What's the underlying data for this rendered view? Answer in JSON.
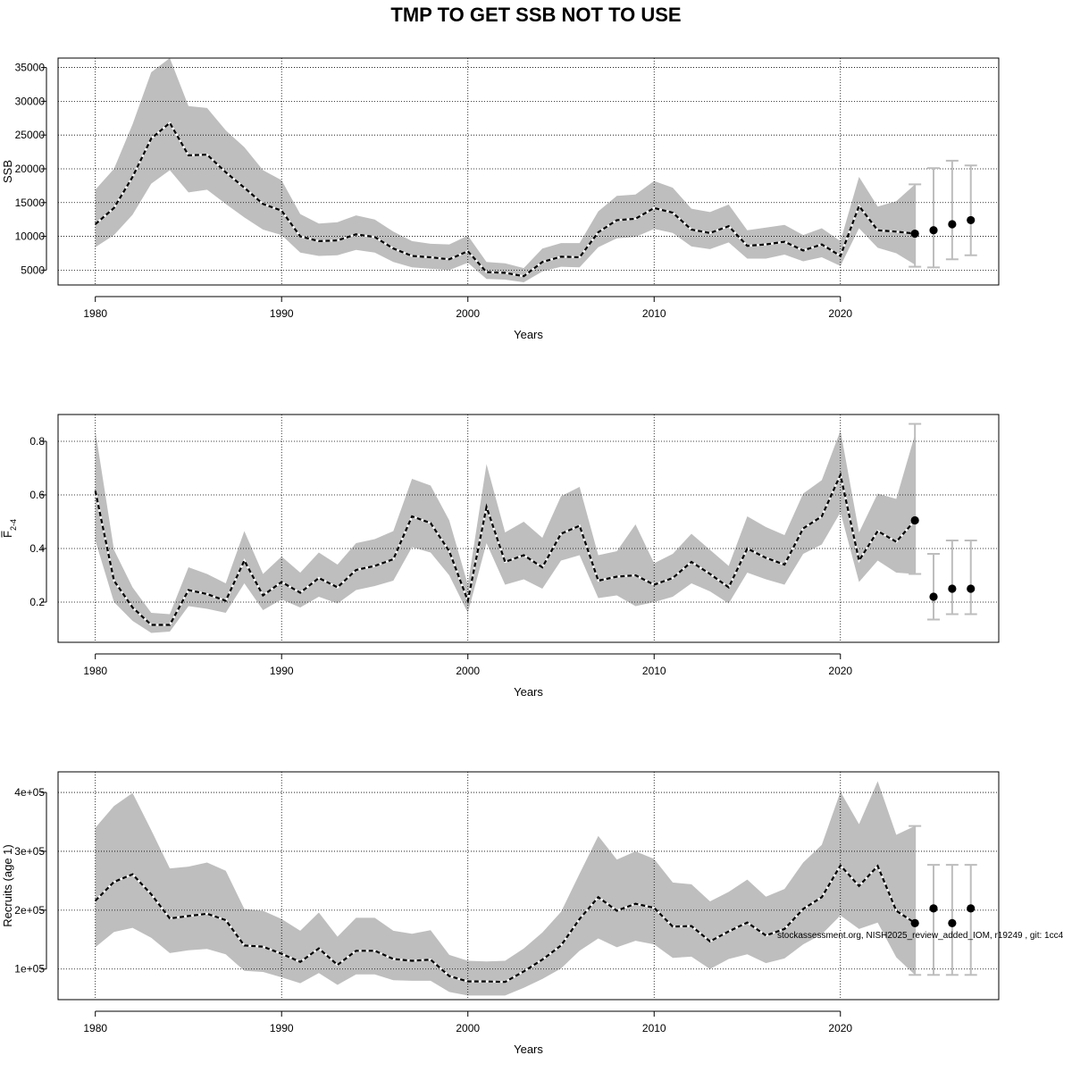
{
  "title": "TMP TO GET SSB NOT TO USE",
  "footnote": "stockassessment.org, NISH2025_review_added_IOM, r19249 , git: 1cc4",
  "colors": {
    "band": "#bebebe",
    "line": "#000000",
    "grid": "#000000",
    "errbar": "#bdbdbd"
  },
  "chart_data": [
    {
      "type": "line",
      "panel": "ssb",
      "xlabel": "Years",
      "ylabel": "SSB",
      "xlim": [
        1978,
        2028.5
      ],
      "ylim": [
        2800,
        36400
      ],
      "xticks": [
        1980,
        1990,
        2000,
        2010,
        2020
      ],
      "yticks": [
        5000,
        10000,
        15000,
        20000,
        25000,
        30000,
        35000
      ],
      "grid": true,
      "x": [
        1980,
        1981,
        1982,
        1983,
        1984,
        1985,
        1986,
        1987,
        1988,
        1989,
        1990,
        1991,
        1992,
        1993,
        1994,
        1995,
        1996,
        1997,
        1998,
        1999,
        2000,
        2001,
        2002,
        2003,
        2004,
        2005,
        2006,
        2007,
        2008,
        2009,
        2010,
        2011,
        2012,
        2013,
        2014,
        2015,
        2016,
        2017,
        2018,
        2019,
        2020,
        2021,
        2022,
        2023,
        2024
      ],
      "y": [
        11800,
        14200,
        18800,
        24500,
        26800,
        22000,
        22100,
        19500,
        17200,
        14800,
        13800,
        10000,
        9300,
        9400,
        10300,
        9900,
        8200,
        7100,
        6900,
        6600,
        7800,
        4700,
        4600,
        4100,
        6200,
        7000,
        6900,
        10600,
        12400,
        12600,
        14200,
        13500,
        11000,
        10500,
        11500,
        8600,
        8800,
        9200,
        7900,
        8800,
        7100,
        14500,
        10900,
        10700,
        10400
      ],
      "lower": [
        8400,
        10200,
        13200,
        17800,
        19800,
        16500,
        16900,
        14800,
        12800,
        11000,
        10200,
        7600,
        7100,
        7200,
        8000,
        7600,
        6200,
        5400,
        5200,
        5000,
        6100,
        3700,
        3600,
        3200,
        4800,
        5500,
        5400,
        8400,
        9700,
        9900,
        11100,
        10500,
        8500,
        8100,
        9100,
        6700,
        6700,
        7300,
        6300,
        6900,
        5600,
        11200,
        8300,
        7500,
        5800
      ],
      "upper": [
        16900,
        20000,
        26600,
        34300,
        36400,
        29300,
        29000,
        25700,
        23200,
        19800,
        18300,
        13300,
        11900,
        12100,
        13100,
        12500,
        10700,
        9300,
        8900,
        8800,
        10100,
        6200,
        6000,
        5300,
        8200,
        9000,
        9000,
        13700,
        16000,
        16200,
        18200,
        17200,
        14100,
        13600,
        14700,
        10900,
        11300,
        11700,
        10200,
        11200,
        9300,
        18800,
        14400,
        15200,
        17700
      ],
      "forecast": {
        "x": [
          2024,
          2025,
          2026,
          2027
        ],
        "y": [
          10400,
          10900,
          11800,
          12400
        ],
        "lower": [
          5500,
          5400,
          6600,
          7200
        ],
        "upper": [
          17700,
          20100,
          21200,
          20500
        ]
      }
    },
    {
      "type": "line",
      "panel": "fbar",
      "xlabel": "Years",
      "ylabel": "F",
      "ylabel_sub": "2-4",
      "xlim": [
        1978,
        2028.5
      ],
      "ylim": [
        0.05,
        0.9
      ],
      "xticks": [
        1980,
        1990,
        2000,
        2010,
        2020
      ],
      "yticks": [
        "0.2",
        "0.4",
        "0.6",
        "0.8"
      ],
      "grid": true,
      "x": [
        1980,
        1981,
        1982,
        1983,
        1984,
        1985,
        1986,
        1987,
        1988,
        1989,
        1990,
        1991,
        1992,
        1993,
        1994,
        1995,
        1996,
        1997,
        1998,
        1999,
        2000,
        2001,
        2002,
        2003,
        2004,
        2005,
        2006,
        2007,
        2008,
        2009,
        2010,
        2011,
        2012,
        2013,
        2014,
        2015,
        2016,
        2017,
        2018,
        2019,
        2020,
        2021,
        2022,
        2023,
        2024
      ],
      "y": [
        0.615,
        0.28,
        0.18,
        0.115,
        0.115,
        0.245,
        0.23,
        0.205,
        0.355,
        0.225,
        0.275,
        0.235,
        0.29,
        0.255,
        0.32,
        0.335,
        0.36,
        0.52,
        0.495,
        0.39,
        0.205,
        0.555,
        0.35,
        0.375,
        0.33,
        0.455,
        0.485,
        0.28,
        0.295,
        0.3,
        0.265,
        0.29,
        0.35,
        0.305,
        0.255,
        0.4,
        0.365,
        0.34,
        0.475,
        0.52,
        0.675,
        0.355,
        0.465,
        0.425,
        0.505
      ],
      "lower": [
        0.43,
        0.2,
        0.13,
        0.085,
        0.09,
        0.185,
        0.175,
        0.16,
        0.27,
        0.17,
        0.21,
        0.18,
        0.22,
        0.195,
        0.245,
        0.26,
        0.28,
        0.405,
        0.385,
        0.3,
        0.16,
        0.42,
        0.265,
        0.285,
        0.25,
        0.355,
        0.375,
        0.215,
        0.225,
        0.185,
        0.2,
        0.22,
        0.27,
        0.24,
        0.195,
        0.31,
        0.285,
        0.265,
        0.38,
        0.415,
        0.535,
        0.275,
        0.355,
        0.31,
        0.305
      ],
      "upper": [
        0.84,
        0.395,
        0.255,
        0.16,
        0.155,
        0.33,
        0.305,
        0.27,
        0.465,
        0.305,
        0.37,
        0.31,
        0.385,
        0.34,
        0.42,
        0.435,
        0.465,
        0.66,
        0.635,
        0.505,
        0.265,
        0.715,
        0.46,
        0.5,
        0.44,
        0.595,
        0.63,
        0.375,
        0.39,
        0.49,
        0.345,
        0.38,
        0.455,
        0.395,
        0.335,
        0.52,
        0.48,
        0.45,
        0.605,
        0.655,
        0.84,
        0.46,
        0.605,
        0.585,
        0.825
      ],
      "forecast": {
        "x": [
          2024,
          2025,
          2026,
          2027
        ],
        "y": [
          0.505,
          0.22,
          0.25,
          0.25
        ],
        "lower": [
          0.305,
          0.135,
          0.155,
          0.155
        ],
        "upper": [
          0.865,
          0.38,
          0.43,
          0.43
        ]
      }
    },
    {
      "type": "line",
      "panel": "recruits",
      "xlabel": "Years",
      "ylabel": "Recruits (age 1)",
      "xlim": [
        1978,
        2028.5
      ],
      "ylim": [
        48000,
        435000
      ],
      "xticks": [
        1980,
        1990,
        2000,
        2010,
        2020
      ],
      "yticks": [
        "1e+05",
        "2e+05",
        "3e+05",
        "4e+05"
      ],
      "ytick_values": [
        100000,
        200000,
        300000,
        400000
      ],
      "grid": true,
      "x": [
        1980,
        1981,
        1982,
        1983,
        1984,
        1985,
        1986,
        1987,
        1988,
        1989,
        1990,
        1991,
        1992,
        1993,
        1994,
        1995,
        1996,
        1997,
        1998,
        1999,
        2000,
        2001,
        2002,
        2003,
        2004,
        2005,
        2006,
        2007,
        2008,
        2009,
        2010,
        2011,
        2012,
        2013,
        2014,
        2015,
        2016,
        2017,
        2018,
        2019,
        2020,
        2021,
        2022,
        2023,
        2024
      ],
      "y": [
        216000,
        248000,
        261000,
        227000,
        186000,
        190000,
        194000,
        183000,
        140000,
        138000,
        126000,
        112000,
        135000,
        107000,
        131000,
        131000,
        117000,
        114000,
        116000,
        88000,
        79000,
        79000,
        78000,
        96000,
        116000,
        140000,
        185000,
        222000,
        199000,
        211000,
        204000,
        172000,
        173000,
        147000,
        164000,
        179000,
        157000,
        168000,
        202000,
        222000,
        276000,
        241000,
        275000,
        199000,
        178000
      ],
      "lower": [
        137000,
        163000,
        170000,
        153000,
        127000,
        132000,
        134000,
        125000,
        97000,
        95000,
        86000,
        76000,
        93000,
        73000,
        91000,
        91000,
        81000,
        80000,
        80000,
        61000,
        55000,
        55000,
        55000,
        68000,
        83000,
        101000,
        131000,
        152000,
        137000,
        148000,
        142000,
        119000,
        121000,
        100000,
        117000,
        125000,
        110000,
        118000,
        142000,
        159000,
        191000,
        168000,
        179000,
        120000,
        90000
      ],
      "upper": [
        340000,
        377000,
        399000,
        336000,
        271000,
        274000,
        281000,
        267000,
        202000,
        199000,
        185000,
        165000,
        196000,
        155000,
        187000,
        187000,
        165000,
        160000,
        166000,
        124000,
        114000,
        113000,
        114000,
        135000,
        162000,
        197000,
        262000,
        326000,
        286000,
        300000,
        287000,
        247000,
        244000,
        215000,
        231000,
        252000,
        223000,
        236000,
        281000,
        311000,
        401000,
        346000,
        419000,
        328000,
        343000
      ],
      "forecast": {
        "x": [
          2024,
          2025,
          2026,
          2027
        ],
        "y": [
          178000,
          203000,
          178000,
          203000
        ],
        "lower": [
          90000,
          90000,
          90000,
          90000
        ],
        "upper": [
          343000,
          277000,
          277000,
          277000
        ]
      }
    }
  ]
}
